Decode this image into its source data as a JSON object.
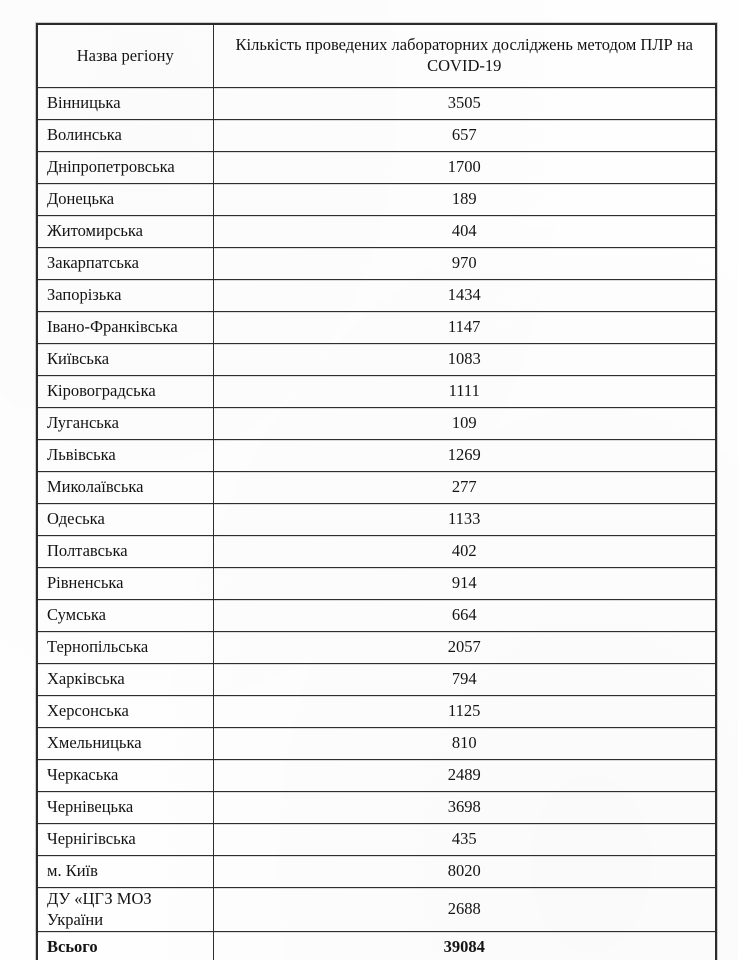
{
  "document": {
    "type": "scanned-table",
    "language": "Ukrainian",
    "table": {
      "headers": {
        "region": "Назва регіону",
        "count": "Кількість проведених лабораторних досліджень методом ПЛР на COVID-19"
      },
      "rows": [
        {
          "name": "Вінницька",
          "value": "3505"
        },
        {
          "name": "Волинська",
          "value": "657"
        },
        {
          "name": "Дніпропетровська",
          "value": "1700"
        },
        {
          "name": "Донецька",
          "value": "189"
        },
        {
          "name": "Житомирська",
          "value": "404"
        },
        {
          "name": "Закарпатська",
          "value": "970"
        },
        {
          "name": "Запорізька",
          "value": "1434"
        },
        {
          "name": "Івано-Франківська",
          "value": "1147"
        },
        {
          "name": "Київська",
          "value": "1083"
        },
        {
          "name": "Кіровоградська",
          "value": "1111"
        },
        {
          "name": "Луганська",
          "value": "109"
        },
        {
          "name": "Львівська",
          "value": "1269"
        },
        {
          "name": "Миколаївська",
          "value": "277"
        },
        {
          "name": "Одеська",
          "value": "1133"
        },
        {
          "name": "Полтавська",
          "value": "402"
        },
        {
          "name": "Рівненська",
          "value": "914"
        },
        {
          "name": "Сумська",
          "value": "664"
        },
        {
          "name": "Тернопільська",
          "value": "2057"
        },
        {
          "name": "Харківська",
          "value": "794"
        },
        {
          "name": "Херсонська",
          "value": "1125"
        },
        {
          "name": "Хмельницька",
          "value": "810"
        },
        {
          "name": "Черкаська",
          "value": "2489"
        },
        {
          "name": "Чернівецька",
          "value": "3698"
        },
        {
          "name": "Чернігівська",
          "value": "435"
        },
        {
          "name": "м. Київ",
          "value": "8020"
        },
        {
          "name": "ДУ «ЦГЗ МОЗ України",
          "value": "2688"
        }
      ],
      "total": {
        "name": "Всього",
        "value": "39084"
      }
    }
  }
}
